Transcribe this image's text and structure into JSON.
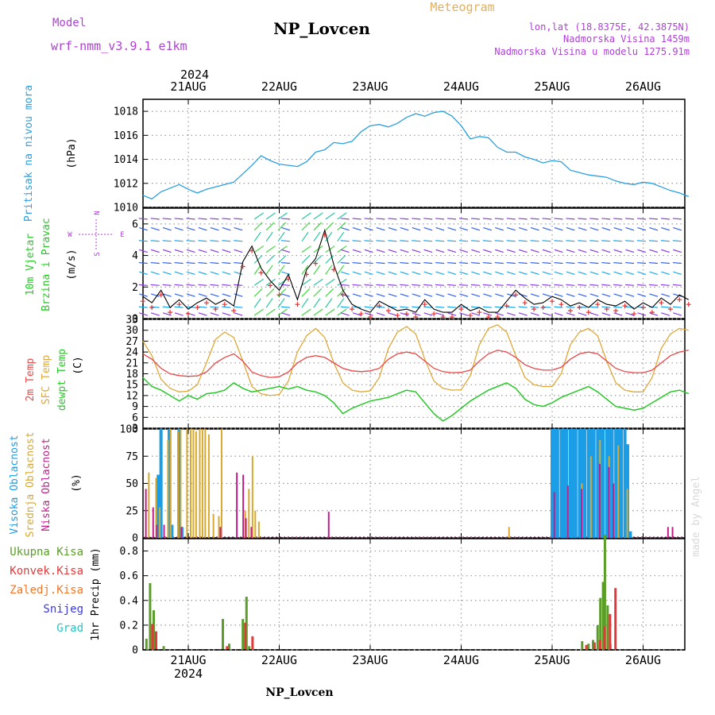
{
  "header": {
    "model_label": "Model",
    "model_name": "wrf-nmm_v3.9.1 e1km",
    "station": "NP_Lovcen",
    "meteogram_label": "Meteogram",
    "lonlat": "lon,lat (18.8375E, 42.3875N)",
    "altitude": "Nadmorska Visina 1459m",
    "model_altitude": "Nadmorska Visina u modelu 1275.91m",
    "year": "2024",
    "footer_station": "NP_Lovcen",
    "credit": "made by Angel"
  },
  "colors": {
    "pressure": "#2aa0e0",
    "t2m": "#e84848",
    "sfc": "#e0a838",
    "dewpoint": "#28c828",
    "high_cloud": "#1c9ee6",
    "mid_cloud": "#d8a830",
    "low_cloud": "#c01f8a",
    "total_precip": "#5a9e28",
    "conv_precip": "#e23a3a",
    "freezing": "#f07828",
    "snow": "#3a3ad8",
    "graupel": "#30c0c0",
    "purple_text": "#b040d8"
  },
  "dates": [
    "21AUG",
    "22AUG",
    "23AUG",
    "24AUG",
    "25AUG",
    "26AUG"
  ],
  "panels": {
    "pressure": {
      "labels": [
        "Pritisak na nivou mora"
      ],
      "unit": "(hPa)",
      "ticks": [
        "1010",
        "1012",
        "1014",
        "1016",
        "1018"
      ]
    },
    "wind": {
      "labels": [
        "10m Vjetar",
        "Brzina i Pravac"
      ],
      "unit": "(m/s)",
      "ticks": [
        "0",
        "2",
        "4",
        "6"
      ],
      "compass": {
        "north": "N",
        "south": "S",
        "west": "W",
        "east": "E"
      }
    },
    "temp": {
      "labels": [
        "2m Temp",
        "SFC Temp",
        "dewpt Temp"
      ],
      "unit": "(C)",
      "ticks": [
        "3",
        "6",
        "9",
        "12",
        "15",
        "18",
        "21",
        "24",
        "27",
        "30",
        "33"
      ]
    },
    "cloud": {
      "labels": [
        "Visoka Oblacnost",
        "Srednja Oblacnost",
        "Niska Oblacnost"
      ],
      "unit": "(%)",
      "ticks": [
        "0",
        "25",
        "50",
        "75",
        "100"
      ]
    },
    "precip": {
      "legend": [
        "Ukupna Kisa",
        "Konvek.Kisa",
        "Zaledj.Kisa",
        "Snijeg",
        "Grad"
      ],
      "unit": "1hr Precip (mm)",
      "ticks": [
        "0",
        "0.2",
        "0.4",
        "0.6",
        "0.8"
      ]
    }
  },
  "chart_data": [
    {
      "type": "line",
      "title": "Pritisak na nivou mora",
      "ylabel": "(hPa)",
      "ylim": [
        1010,
        1019
      ],
      "x_unit": "days since 21AUG 00UTC",
      "xlim": [
        -0.5,
        5.5
      ],
      "series": [
        {
          "name": "Pritisak na nivou mora",
          "x": [
            -0.5,
            -0.4,
            -0.3,
            -0.2,
            -0.1,
            0.0,
            0.1,
            0.2,
            0.3,
            0.4,
            0.5,
            0.6,
            0.7,
            0.8,
            0.9,
            1.0,
            1.1,
            1.2,
            1.3,
            1.4,
            1.5,
            1.6,
            1.7,
            1.8,
            1.9,
            2.0,
            2.1,
            2.2,
            2.3,
            2.4,
            2.5,
            2.6,
            2.7,
            2.8,
            2.9,
            3.0,
            3.1,
            3.2,
            3.3,
            3.4,
            3.5,
            3.6,
            3.7,
            3.8,
            3.9,
            4.0,
            4.1,
            4.2,
            4.3,
            4.4,
            4.5,
            4.6,
            4.7,
            4.8,
            4.9,
            5.0,
            5.1,
            5.2,
            5.3,
            5.4,
            5.5
          ],
          "values": [
            1011.0,
            1010.7,
            1011.3,
            1011.6,
            1011.9,
            1011.5,
            1011.2,
            1011.5,
            1011.7,
            1011.9,
            1012.1,
            1012.8,
            1013.5,
            1014.3,
            1013.9,
            1013.6,
            1013.5,
            1013.4,
            1013.8,
            1014.6,
            1014.8,
            1015.4,
            1015.3,
            1015.5,
            1016.3,
            1016.8,
            1016.9,
            1016.7,
            1017.0,
            1017.5,
            1017.8,
            1017.6,
            1017.9,
            1018.0,
            1017.6,
            1016.8,
            1015.7,
            1015.9,
            1015.8,
            1015.0,
            1014.6,
            1014.6,
            1014.2,
            1014.0,
            1013.7,
            1013.9,
            1013.8,
            1013.1,
            1012.9,
            1012.7,
            1012.6,
            1012.5,
            1012.2,
            1012.0,
            1011.9,
            1012.1,
            1012.0,
            1011.7,
            1011.4,
            1011.2,
            1010.9
          ]
        }
      ]
    },
    {
      "type": "scatter",
      "title": "10m Vjetar Brzina i Pravac",
      "ylabel": "(m/s)",
      "ylim": [
        0,
        7
      ],
      "x_unit": "days since 21AUG 00UTC",
      "xlim": [
        -0.5,
        5.5
      ],
      "series": [
        {
          "name": "brzina vjetra",
          "x": [
            -0.5,
            -0.4,
            -0.3,
            -0.2,
            -0.1,
            0.0,
            0.1,
            0.2,
            0.3,
            0.4,
            0.5,
            0.6,
            0.7,
            0.8,
            0.9,
            1.0,
            1.1,
            1.2,
            1.3,
            1.4,
            1.5,
            1.6,
            1.7,
            1.8,
            1.9,
            2.0,
            2.1,
            2.2,
            2.3,
            2.4,
            2.5,
            2.6,
            2.7,
            2.8,
            2.9,
            3.0,
            3.1,
            3.2,
            3.3,
            3.4,
            3.5,
            3.6,
            3.7,
            3.8,
            3.9,
            4.0,
            4.1,
            4.2,
            4.3,
            4.4,
            4.5,
            4.6,
            4.7,
            4.8,
            4.9,
            5.0,
            5.1,
            5.2,
            5.3,
            5.4,
            5.5
          ],
          "values": [
            1.4,
            1.0,
            1.8,
            0.7,
            1.2,
            0.6,
            1.0,
            1.3,
            0.9,
            1.2,
            0.8,
            3.6,
            4.6,
            3.2,
            2.4,
            1.8,
            2.8,
            1.2,
            3.1,
            3.8,
            5.6,
            3.4,
            1.8,
            0.9,
            0.6,
            0.4,
            1.1,
            0.8,
            0.5,
            0.6,
            0.4,
            1.2,
            0.6,
            0.4,
            0.4,
            0.9,
            0.5,
            0.7,
            0.4,
            0.4,
            1.1,
            1.8,
            1.3,
            0.9,
            1.0,
            1.4,
            1.2,
            0.8,
            1.0,
            0.7,
            1.2,
            0.9,
            0.8,
            1.1,
            0.6,
            1.0,
            0.7,
            1.3,
            0.9,
            1.5,
            1.2
          ]
        }
      ]
    },
    {
      "type": "line",
      "title": "2m Temp / SFC Temp / dewpt Temp",
      "ylabel": "(C)",
      "ylim": [
        3,
        33
      ],
      "x_unit": "days since 21AUG 00UTC",
      "xlim": [
        -0.5,
        5.5
      ],
      "series": [
        {
          "name": "2m Temp",
          "x": [
            -0.5,
            -0.4,
            -0.3,
            -0.2,
            -0.1,
            0.0,
            0.1,
            0.2,
            0.3,
            0.4,
            0.5,
            0.6,
            0.7,
            0.8,
            0.9,
            1.0,
            1.1,
            1.2,
            1.3,
            1.4,
            1.5,
            1.6,
            1.7,
            1.8,
            1.9,
            2.0,
            2.1,
            2.2,
            2.3,
            2.4,
            2.5,
            2.6,
            2.7,
            2.8,
            2.9,
            3.0,
            3.1,
            3.2,
            3.3,
            3.4,
            3.5,
            3.6,
            3.7,
            3.8,
            3.9,
            4.0,
            4.1,
            4.2,
            4.3,
            4.4,
            4.5,
            4.6,
            4.7,
            4.8,
            4.9,
            5.0,
            5.1,
            5.2,
            5.3,
            5.4,
            5.5
          ],
          "values": [
            23.5,
            22.0,
            19.5,
            18.0,
            17.5,
            17.3,
            17.4,
            18.5,
            21.0,
            22.5,
            23.5,
            21.5,
            18.5,
            17.5,
            17.0,
            17.2,
            18.5,
            21.0,
            22.5,
            23.0,
            22.5,
            21.0,
            19.5,
            18.8,
            18.6,
            18.8,
            19.5,
            22.0,
            23.5,
            24.0,
            23.5,
            21.5,
            19.5,
            18.6,
            18.3,
            18.4,
            19.0,
            21.5,
            23.5,
            24.5,
            24.0,
            22.5,
            20.5,
            19.5,
            19.0,
            19.0,
            19.8,
            22.0,
            23.5,
            24.0,
            23.5,
            21.5,
            19.5,
            18.6,
            18.3,
            18.3,
            19.0,
            21.0,
            23.0,
            24.0,
            24.5
          ]
        },
        {
          "name": "SFC Temp",
          "x": [
            -0.5,
            -0.4,
            -0.3,
            -0.2,
            -0.1,
            0.0,
            0.1,
            0.2,
            0.3,
            0.4,
            0.5,
            0.6,
            0.7,
            0.8,
            0.9,
            1.0,
            1.1,
            1.2,
            1.3,
            1.4,
            1.5,
            1.6,
            1.7,
            1.8,
            1.9,
            2.0,
            2.1,
            2.2,
            2.3,
            2.4,
            2.5,
            2.6,
            2.7,
            2.8,
            2.9,
            3.0,
            3.1,
            3.2,
            3.3,
            3.4,
            3.5,
            3.6,
            3.7,
            3.8,
            3.9,
            4.0,
            4.1,
            4.2,
            4.3,
            4.4,
            4.5,
            4.6,
            4.7,
            4.8,
            4.9,
            5.0,
            5.1,
            5.2,
            5.3,
            5.4,
            5.5
          ],
          "values": [
            27.0,
            23.0,
            16.5,
            14.0,
            13.0,
            13.2,
            15.0,
            21.0,
            27.5,
            29.5,
            28.0,
            21.5,
            14.5,
            12.5,
            12.0,
            12.3,
            16.0,
            24.0,
            28.5,
            30.5,
            28.0,
            21.0,
            15.5,
            13.5,
            13.0,
            13.3,
            17.0,
            25.0,
            29.5,
            31.0,
            29.0,
            22.0,
            16.0,
            14.0,
            13.5,
            13.6,
            17.5,
            26.0,
            30.5,
            31.5,
            29.5,
            23.0,
            17.0,
            15.0,
            14.5,
            14.5,
            18.0,
            26.0,
            29.5,
            30.5,
            28.5,
            21.5,
            15.5,
            13.5,
            13.0,
            13.0,
            17.0,
            25.0,
            29.0,
            30.5,
            30.0
          ]
        },
        {
          "name": "dewpt Temp",
          "x": [
            -0.5,
            -0.4,
            -0.3,
            -0.2,
            -0.1,
            0.0,
            0.1,
            0.2,
            0.3,
            0.4,
            0.5,
            0.6,
            0.7,
            0.8,
            0.9,
            1.0,
            1.1,
            1.2,
            1.3,
            1.4,
            1.5,
            1.6,
            1.7,
            1.8,
            1.9,
            2.0,
            2.1,
            2.2,
            2.3,
            2.4,
            2.5,
            2.6,
            2.7,
            2.8,
            2.9,
            3.0,
            3.1,
            3.2,
            3.3,
            3.4,
            3.5,
            3.6,
            3.7,
            3.8,
            3.9,
            4.0,
            4.1,
            4.2,
            4.3,
            4.4,
            4.5,
            4.6,
            4.7,
            4.8,
            4.9,
            5.0,
            5.1,
            5.2,
            5.3,
            5.4,
            5.5
          ],
          "values": [
            17.0,
            14.5,
            13.5,
            12.0,
            10.5,
            12.0,
            11.0,
            12.5,
            12.8,
            13.5,
            15.5,
            14.0,
            13.0,
            13.5,
            14.0,
            14.5,
            13.8,
            14.5,
            13.5,
            13.0,
            12.0,
            10.0,
            7.0,
            8.5,
            9.5,
            10.5,
            11.0,
            11.5,
            12.5,
            13.5,
            13.0,
            10.0,
            7.0,
            5.0,
            6.5,
            8.5,
            10.5,
            12.0,
            13.5,
            14.5,
            15.5,
            14.0,
            11.0,
            9.5,
            9.0,
            10.0,
            11.5,
            12.5,
            13.5,
            14.5,
            13.0,
            11.0,
            9.0,
            8.5,
            8.0,
            8.5,
            10.0,
            11.5,
            13.0,
            13.5,
            12.5
          ]
        }
      ]
    },
    {
      "type": "bar",
      "title": "Visoka / Srednja / Niska Oblacnost",
      "ylabel": "(%)",
      "ylim": [
        0,
        100
      ],
      "x_unit": "days since 21AUG 00UTC",
      "xlim": [
        -0.5,
        5.5
      ],
      "series": [
        {
          "name": "Visoka Oblacnost",
          "x": [
            -0.33,
            -0.3,
            -0.21,
            -0.18,
            -0.1,
            -0.07,
            4.0,
            4.03,
            4.06,
            4.1,
            4.13,
            4.16,
            4.2,
            4.23,
            4.26,
            4.3,
            4.33,
            4.36,
            4.4,
            4.43,
            4.46,
            4.5,
            4.53,
            4.56,
            4.6,
            4.63,
            4.66,
            4.7,
            4.73,
            4.76,
            4.8,
            4.83,
            4.86
          ],
          "values": [
            58,
            100,
            100,
            12,
            100,
            10,
            100,
            100,
            100,
            100,
            100,
            100,
            100,
            100,
            100,
            100,
            100,
            100,
            100,
            100,
            100,
            100,
            100,
            100,
            100,
            100,
            100,
            100,
            100,
            100,
            100,
            86,
            6
          ]
        },
        {
          "name": "Srednja Oblacnost",
          "x": [
            -0.46,
            -0.38,
            -0.34,
            -0.25,
            -0.22,
            -0.14,
            -0.11,
            -0.04,
            0.0,
            0.03,
            0.06,
            0.1,
            0.13,
            0.16,
            0.2,
            0.25,
            0.31,
            0.34,
            0.6,
            0.64,
            0.68,
            0.71,
            0.75,
            3.5,
            4.3,
            4.4,
            4.5,
            4.6,
            4.7,
            4.8
          ],
          "values": [
            60,
            55,
            28,
            90,
            100,
            98,
            100,
            100,
            100,
            100,
            98,
            100,
            100,
            100,
            95,
            22,
            20,
            100,
            25,
            45,
            75,
            25,
            15,
            10,
            50,
            75,
            90,
            75,
            85,
            45
          ]
        },
        {
          "name": "Niska Oblacnost",
          "x": [
            -0.44,
            -0.36,
            -0.32,
            -0.24,
            -0.05,
            0.38,
            0.56,
            0.63,
            0.66,
            0.72,
            1.57,
            4.05,
            4.2,
            4.35,
            4.55,
            4.65,
            4.7,
            5.3,
            5.35
          ],
          "values": [
            45,
            28,
            12,
            12,
            10,
            10,
            60,
            58,
            18,
            10,
            24,
            42,
            48,
            45,
            68,
            65,
            50,
            10,
            10
          ]
        }
      ]
    },
    {
      "type": "bar",
      "title": "1hr Precip",
      "ylabel": "1hr Precip (mm)",
      "ylim": [
        0,
        0.9
      ],
      "x_unit": "days since 21AUG 00UTC",
      "xlim": [
        -0.5,
        5.5
      ],
      "series": [
        {
          "name": "Ukupna Kisa",
          "x": [
            -0.46,
            -0.42,
            -0.38,
            -0.27,
            0.38,
            0.45,
            0.6,
            0.64,
            0.67,
            4.33,
            4.4,
            4.45,
            4.5,
            4.53,
            4.56,
            4.58,
            4.61,
            4.64
          ],
          "values": [
            0.09,
            0.54,
            0.32,
            0.03,
            0.25,
            0.05,
            0.25,
            0.43,
            0.03,
            0.07,
            0.05,
            0.08,
            0.2,
            0.42,
            0.55,
            0.93,
            0.36,
            0.05
          ]
        },
        {
          "name": "Konvek.Kisa",
          "x": [
            -0.42,
            -0.38,
            0.4,
            0.6,
            0.68,
            4.35,
            4.44,
            4.5,
            4.55,
            4.61,
            4.67
          ],
          "values": [
            0.21,
            0.15,
            0.03,
            0.22,
            0.11,
            0.04,
            0.06,
            0.08,
            0.19,
            0.29,
            0.5
          ]
        }
      ]
    }
  ]
}
